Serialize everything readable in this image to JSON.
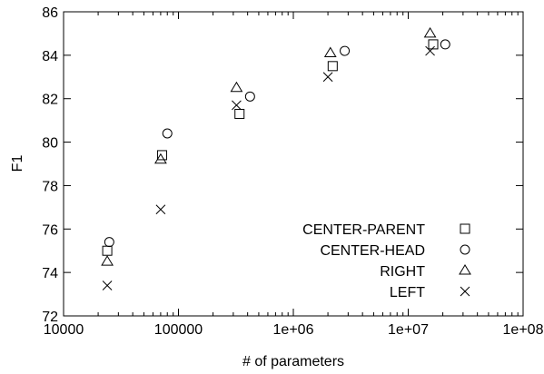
{
  "chart_data": {
    "type": "scatter",
    "xlabel": "# of parameters",
    "ylabel": "F1",
    "x_scale": "log",
    "xlim": [
      10000,
      100000000
    ],
    "ylim": [
      72,
      86
    ],
    "x_ticks": [
      10000,
      100000,
      1000000,
      10000000,
      100000000
    ],
    "x_tick_labels": [
      "10000",
      "100000",
      "1e+06",
      "1e+07",
      "1e+08"
    ],
    "y_ticks": [
      72,
      74,
      76,
      78,
      80,
      82,
      84,
      86
    ],
    "y_tick_labels": [
      "72",
      "74",
      "76",
      "78",
      "80",
      "82",
      "84",
      "86"
    ],
    "grid": false,
    "legend_position": "bottom-right",
    "series": [
      {
        "name": "CENTER-PARENT",
        "marker": "square",
        "points": [
          [
            24000,
            75.0
          ],
          [
            72000,
            79.4
          ],
          [
            340000,
            81.3
          ],
          [
            2200000,
            83.5
          ],
          [
            16500000,
            84.5
          ]
        ]
      },
      {
        "name": "CENTER-HEAD",
        "marker": "circle",
        "points": [
          [
            25000,
            75.4
          ],
          [
            80000,
            80.4
          ],
          [
            420000,
            82.1
          ],
          [
            2800000,
            84.2
          ],
          [
            21000000,
            84.5
          ]
        ]
      },
      {
        "name": "RIGHT",
        "marker": "triangle",
        "points": [
          [
            24000,
            74.5
          ],
          [
            70000,
            79.2
          ],
          [
            320000,
            82.5
          ],
          [
            2100000,
            84.1
          ],
          [
            15500000,
            85.0
          ]
        ]
      },
      {
        "name": "LEFT",
        "marker": "x",
        "points": [
          [
            24000,
            73.4
          ],
          [
            70000,
            76.9
          ],
          [
            320000,
            81.7
          ],
          [
            2000000,
            83.0
          ],
          [
            15500000,
            84.2
          ]
        ]
      }
    ]
  }
}
